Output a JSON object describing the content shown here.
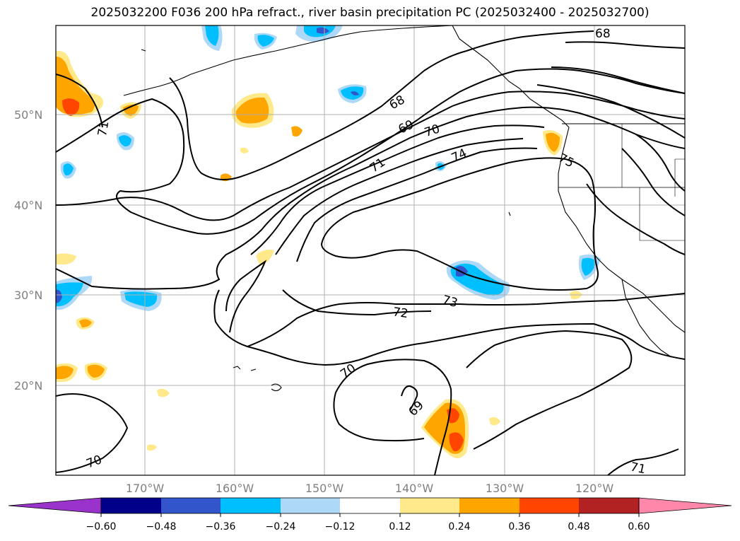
{
  "title": "2025032200 F036 200 hPa refract., river basin precipitation PC (2025032400 - 2025032700)",
  "map": {
    "lat_labels": [
      "50°N",
      "40°N",
      "30°N",
      "20°N"
    ],
    "lon_labels": [
      "170°W",
      "160°W",
      "150°W",
      "140°W",
      "130°W",
      "120°W"
    ],
    "contour_labels": [
      "68",
      "68",
      "69",
      "69",
      "70",
      "70",
      "70",
      "71",
      "71",
      "71",
      "72",
      "73",
      "74",
      "75"
    ]
  },
  "colorbar": {
    "labels": [
      "−0.60",
      "−0.48",
      "−0.36",
      "−0.24",
      "−0.12",
      "0.12",
      "0.24",
      "0.36",
      "0.48",
      "0.60"
    ],
    "colors": [
      "#9933cc",
      "#00008b",
      "#3355cc",
      "#00bfff",
      "#add8f7",
      "#ffffff",
      "#ffe98a",
      "#ffa500",
      "#ff4500",
      "#b22222",
      "#ff88aa"
    ]
  }
}
